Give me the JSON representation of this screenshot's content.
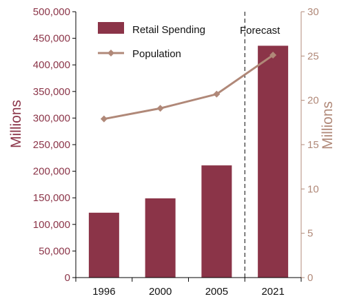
{
  "chart_data": {
    "type": "bar",
    "categories": [
      "1996",
      "2000",
      "2005",
      "2021"
    ],
    "series": [
      {
        "name": "Retail Spending",
        "type": "bar",
        "axis": "left",
        "values": [
          122000,
          149000,
          211000,
          436000
        ]
      },
      {
        "name": "Population",
        "type": "line",
        "axis": "right",
        "values": [
          17.9,
          19.1,
          20.7,
          25.1
        ]
      }
    ],
    "y_left": {
      "label": "Millions",
      "min": 0,
      "max": 500000,
      "step": 50000
    },
    "y_right": {
      "label": "Millions",
      "min": 0,
      "max": 30,
      "step": 5
    },
    "annotation": {
      "text": "Forecast",
      "divider_between": [
        "2005",
        "2021"
      ]
    },
    "grid": false,
    "legend_position": "top",
    "colors": {
      "bar": "#8b3448",
      "line": "#b08878",
      "left_axis": "#8b3448",
      "right_axis": "#b08878"
    }
  }
}
